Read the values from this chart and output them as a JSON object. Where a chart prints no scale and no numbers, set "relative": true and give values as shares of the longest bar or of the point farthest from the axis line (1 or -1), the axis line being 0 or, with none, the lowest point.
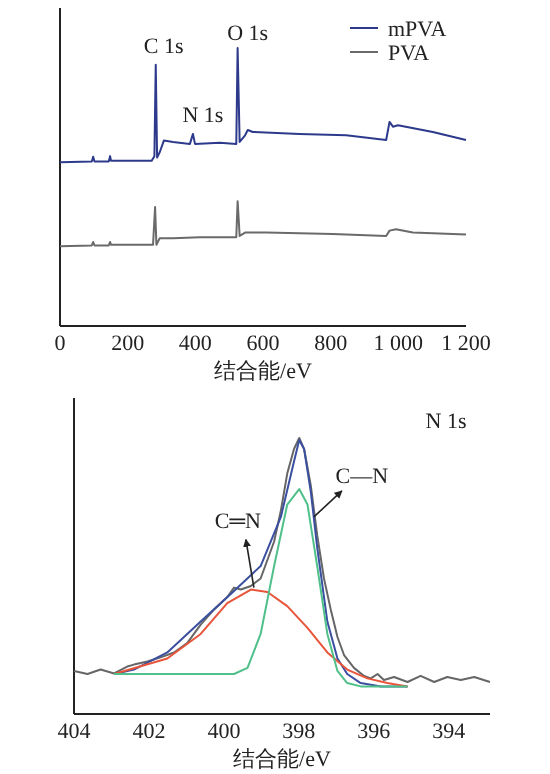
{
  "chart_data": [
    {
      "type": "line",
      "relative": true,
      "xlabel": "结合能/eV",
      "xlim": [
        0,
        1200
      ],
      "xticks": [
        0,
        200,
        400,
        600,
        800,
        {
          "value": 1000,
          "label": "1 000"
        },
        {
          "value": 1200,
          "label": "1 200"
        }
      ],
      "legend": "top right",
      "annotations": [
        {
          "text": "C 1s",
          "x": 283,
          "y": 0.94
        },
        {
          "text": "N 1s",
          "x": 393,
          "y": 0.691
        },
        {
          "text": "O 1s",
          "x": 525,
          "y": 1.0
        }
      ],
      "series": [
        {
          "name": "mPVA",
          "color": "#2d3a8c",
          "x": [
            0,
            94,
            98,
            102,
            144,
            148,
            151,
            271,
            279,
            283,
            287,
            295,
            307,
            334,
            384,
            393,
            399,
            472,
            521,
            525,
            531,
            547,
            555,
            570,
            708,
            846,
            964,
            974,
            984,
            999,
            1102,
            1200
          ],
          "values": [
            0.589,
            0.592,
            0.609,
            0.592,
            0.592,
            0.611,
            0.594,
            0.594,
            0.611,
            0.94,
            0.606,
            0.626,
            0.667,
            0.662,
            0.655,
            0.691,
            0.655,
            0.659,
            0.655,
            1.0,
            0.662,
            0.686,
            0.705,
            0.698,
            0.691,
            0.686,
            0.669,
            0.734,
            0.717,
            0.722,
            0.698,
            0.669
          ]
        },
        {
          "name": "PVA",
          "color": "#6a6a6a",
          "x": [
            0,
            94,
            98,
            102,
            144,
            148,
            151,
            275,
            281,
            285,
            295,
            334,
            413,
            521,
            525,
            531,
            547,
            610,
            806,
            964,
            974,
            993,
            1043,
            1200
          ],
          "values": [
            0.287,
            0.29,
            0.302,
            0.29,
            0.29,
            0.302,
            0.292,
            0.292,
            0.428,
            0.292,
            0.316,
            0.316,
            0.319,
            0.319,
            0.449,
            0.324,
            0.336,
            0.336,
            0.331,
            0.324,
            0.343,
            0.348,
            0.336,
            0.329
          ]
        }
      ]
    },
    {
      "type": "line",
      "relative": true,
      "xlabel": "结合能/eV",
      "xlim": [
        404,
        392.9
      ],
      "xticks": [
        404,
        402,
        400,
        398,
        396,
        394
      ],
      "annotations": [
        "N 1s",
        {
          "text": "C═N",
          "x": 399.2,
          "y": 0.458
        },
        {
          "text": "C—N",
          "x": 397.6,
          "y": 0.714
        }
      ],
      "series": [
        {
          "color": "#666666",
          "x": [
            404,
            403.64,
            403.29,
            402.93,
            402.58,
            402.4,
            402.04,
            401.69,
            401.33,
            400.98,
            400.62,
            400.26,
            399.91,
            399.73,
            399.55,
            399.28,
            399.02,
            398.84,
            398.66,
            398.48,
            398.31,
            398.13,
            397.99,
            397.86,
            397.68,
            397.51,
            397.33,
            397.15,
            396.97,
            396.79,
            396.53,
            396.26,
            396.08,
            395.9,
            395.73,
            395.46,
            395.1,
            394.75,
            394.39,
            394.04,
            393.68,
            393.32,
            392.9
          ],
          "values": [
            0.156,
            0.145,
            0.161,
            0.147,
            0.172,
            0.179,
            0.19,
            0.205,
            0.223,
            0.257,
            0.324,
            0.379,
            0.424,
            0.458,
            0.451,
            0.464,
            0.491,
            0.558,
            0.625,
            0.737,
            0.871,
            0.96,
            1.0,
            0.96,
            0.826,
            0.647,
            0.491,
            0.379,
            0.279,
            0.212,
            0.167,
            0.138,
            0.129,
            0.145,
            0.123,
            0.134,
            0.116,
            0.138,
            0.116,
            0.134,
            0.123,
            0.134,
            0.116
          ]
        },
        {
          "color": "#3a4fa0",
          "x": [
            402.93,
            402.4,
            401.51,
            400.62,
            399.73,
            399.02,
            398.48,
            398.13,
            397.99,
            397.86,
            397.68,
            397.51,
            397.24,
            396.97,
            396.71,
            396.35,
            395.81,
            395.1
          ],
          "values": [
            0.145,
            0.161,
            0.223,
            0.335,
            0.446,
            0.536,
            0.714,
            0.915,
            0.993,
            0.96,
            0.804,
            0.603,
            0.335,
            0.201,
            0.145,
            0.112,
            0.1,
            0.1
          ]
        },
        {
          "color": "#e8553a",
          "x": [
            402.93,
            401.51,
            400.62,
            399.91,
            399.28,
            398.84,
            398.31,
            397.77,
            397.24,
            396.71,
            396.17,
            395.64,
            395.1
          ],
          "values": [
            0.145,
            0.201,
            0.29,
            0.402,
            0.451,
            0.442,
            0.391,
            0.312,
            0.223,
            0.161,
            0.129,
            0.112,
            0.1
          ]
        },
        {
          "color": "#4fc08a",
          "x": [
            402.93,
            399.73,
            399.37,
            399.02,
            398.66,
            398.31,
            397.99,
            397.77,
            397.51,
            397.24,
            396.97,
            396.71,
            396.35,
            395.1
          ],
          "values": [
            0.145,
            0.145,
            0.167,
            0.29,
            0.536,
            0.759,
            0.815,
            0.759,
            0.536,
            0.29,
            0.156,
            0.112,
            0.1,
            0.1
          ]
        }
      ]
    }
  ]
}
